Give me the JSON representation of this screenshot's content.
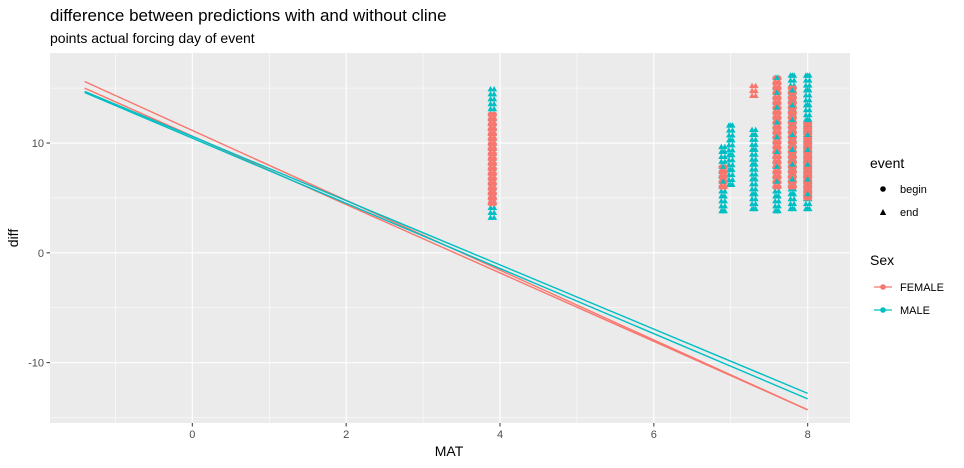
{
  "chart_data": {
    "type": "scatter",
    "title": "difference between predictions with and without cline",
    "subtitle": "points actual forcing day of event",
    "xlabel": "MAT",
    "ylabel": "diff",
    "xlim": [
      -1.85,
      8.55
    ],
    "ylim": [
      -15.5,
      18.2
    ],
    "x_ticks": [
      0,
      2,
      4,
      6,
      8
    ],
    "y_ticks": [
      -10,
      0,
      10
    ],
    "x_tick_labels": [
      "0",
      "2",
      "4",
      "6",
      "8"
    ],
    "y_tick_labels": [
      "-10",
      "0",
      "10"
    ],
    "grid": true,
    "legend_placement": "right",
    "colors": {
      "FEMALE": "#F8766D",
      "MALE": "#00BFC4",
      "panel": "#EBEBEB",
      "grid": "#FFFFFF"
    },
    "legends": [
      {
        "title": "event",
        "items": [
          {
            "label": "begin",
            "shape": "circle"
          },
          {
            "label": "end",
            "shape": "triangle"
          }
        ]
      },
      {
        "title": "Sex",
        "items": [
          {
            "label": "FEMALE",
            "color": "#F8766D"
          },
          {
            "label": "MALE",
            "color": "#00BFC4"
          }
        ]
      }
    ],
    "lines": [
      {
        "series": "FEMALE",
        "x": [
          -1.4,
          8.0
        ],
        "y": [
          15.6,
          -14.3
        ]
      },
      {
        "series": "FEMALE",
        "x": [
          -1.4,
          8.0
        ],
        "y": [
          15.0,
          -14.3
        ]
      },
      {
        "series": "MALE",
        "x": [
          -1.4,
          8.0
        ],
        "y": [
          14.7,
          -12.8
        ]
      },
      {
        "series": "MALE",
        "x": [
          -1.4,
          8.0
        ],
        "y": [
          14.6,
          -13.3
        ]
      }
    ],
    "point_groups": [
      {
        "x": 3.9,
        "y_min": 3.2,
        "y_max": 15.3,
        "series": "MALE",
        "event": "end"
      },
      {
        "x": 3.9,
        "y_min": 4.5,
        "y_max": 13.0,
        "series": "FEMALE",
        "event": "begin"
      },
      {
        "x": 6.9,
        "y_min": 3.8,
        "y_max": 10.0,
        "series": "MALE",
        "event": "end"
      },
      {
        "x": 6.9,
        "y_min": 6.0,
        "y_max": 8.0,
        "series": "FEMALE",
        "event": "begin"
      },
      {
        "x": 7.0,
        "y_min": 6.2,
        "y_max": 12.0,
        "series": "MALE",
        "event": "end"
      },
      {
        "x": 7.3,
        "y_min": 4.0,
        "y_max": 11.5,
        "series": "MALE",
        "event": "end"
      },
      {
        "x": 7.3,
        "y_min": 14.3,
        "y_max": 15.2,
        "series": "FEMALE",
        "event": "end"
      },
      {
        "x": 7.6,
        "y_min": 3.8,
        "y_max": 16.3,
        "series": "MALE",
        "event": "end"
      },
      {
        "x": 7.6,
        "y_min": 6.0,
        "y_max": 16.3,
        "series": "FEMALE",
        "event": "begin"
      },
      {
        "x": 7.8,
        "y_min": 4.0,
        "y_max": 16.3,
        "series": "MALE",
        "event": "end"
      },
      {
        "x": 7.8,
        "y_min": 6.0,
        "y_max": 15.2,
        "series": "FEMALE",
        "event": "begin"
      },
      {
        "x": 8.0,
        "y_min": 4.0,
        "y_max": 16.5,
        "series": "MALE",
        "event": "end"
      },
      {
        "x": 8.0,
        "y_min": 5.0,
        "y_max": 12.0,
        "series": "FEMALE",
        "event": "begin"
      }
    ]
  }
}
